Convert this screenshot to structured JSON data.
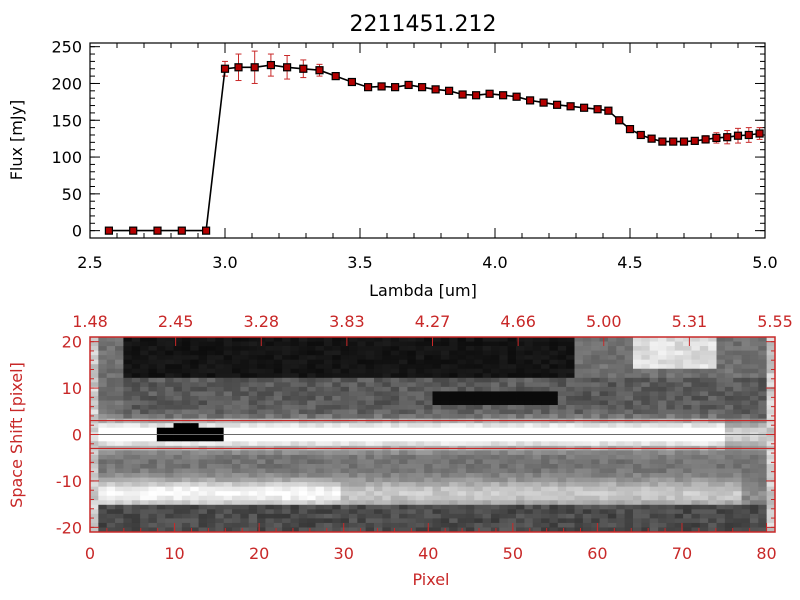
{
  "colors": {
    "axis_black": "#000000",
    "accent_red": "#c82828",
    "marker_red": "#b40000",
    "background": "#ffffff"
  },
  "chart_data": [
    {
      "type": "line",
      "title": "2211451.212",
      "xlabel": "Lambda [um]",
      "ylabel": "Flux [mJy]",
      "xlim": [
        2.5,
        5.0
      ],
      "ylim": [
        -10,
        255
      ],
      "xticks": [
        "2.5",
        "3.0",
        "3.5",
        "4.0",
        "4.5",
        "5.0"
      ],
      "yticks": [
        "0",
        "50",
        "100",
        "150",
        "200",
        "250"
      ],
      "grid": false,
      "legend": "none",
      "series": [
        {
          "x": [
            2.57,
            2.66,
            2.75,
            2.84,
            2.93,
            3.0,
            3.05,
            3.11,
            3.17,
            3.23,
            3.29,
            3.35,
            3.41,
            3.47,
            3.53,
            3.58,
            3.63,
            3.68,
            3.73,
            3.78,
            3.83,
            3.88,
            3.93,
            3.98,
            4.03,
            4.08,
            4.13,
            4.18,
            4.23,
            4.28,
            4.33,
            4.38,
            4.42,
            4.46,
            4.5,
            4.54,
            4.58,
            4.62,
            4.66,
            4.7,
            4.74,
            4.78,
            4.82,
            4.86,
            4.9,
            4.94,
            4.98
          ],
          "y": [
            0,
            0,
            0,
            0,
            0,
            220,
            222,
            222,
            225,
            222,
            220,
            218,
            210,
            202,
            195,
            196,
            195,
            198,
            195,
            192,
            190,
            185,
            184,
            186,
            184,
            182,
            177,
            174,
            171,
            169,
            167,
            165,
            163,
            150,
            138,
            130,
            125,
            121,
            121,
            121,
            122,
            124,
            126,
            127,
            129,
            130,
            132
          ],
          "yerr": [
            0,
            0,
            0,
            0,
            0,
            10,
            18,
            22,
            15,
            16,
            12,
            8,
            4,
            3,
            3,
            3,
            3,
            3,
            3,
            3,
            3,
            3,
            3,
            3,
            3,
            3,
            3,
            3,
            3,
            3,
            3,
            3,
            3,
            3,
            3,
            3,
            3,
            3,
            3,
            3,
            4,
            5,
            7,
            9,
            10,
            10,
            8
          ]
        }
      ]
    },
    {
      "type": "heatmap",
      "xlabel": "Pixel",
      "ylabel": "Space Shift [pixel]",
      "xlim": [
        0,
        81
      ],
      "ylim": [
        -21,
        21
      ],
      "xticks": [
        "0",
        "10",
        "20",
        "30",
        "40",
        "50",
        "60",
        "70",
        "80"
      ],
      "yticks": [
        "-20",
        "-10",
        "0",
        "10",
        "20"
      ],
      "top_xticks": [
        "1.48",
        "2.45",
        "3.28",
        "3.83",
        "4.27",
        "4.66",
        "5.00",
        "5.31",
        "5.55"
      ],
      "bands": [
        {
          "name_hidden": true,
          "y_center": 0,
          "kind": "bright-trace"
        },
        {
          "name_hidden": true,
          "y_center": -13,
          "kind": "bright-trace"
        }
      ],
      "hlines": [
        3,
        -3
      ]
    }
  ]
}
